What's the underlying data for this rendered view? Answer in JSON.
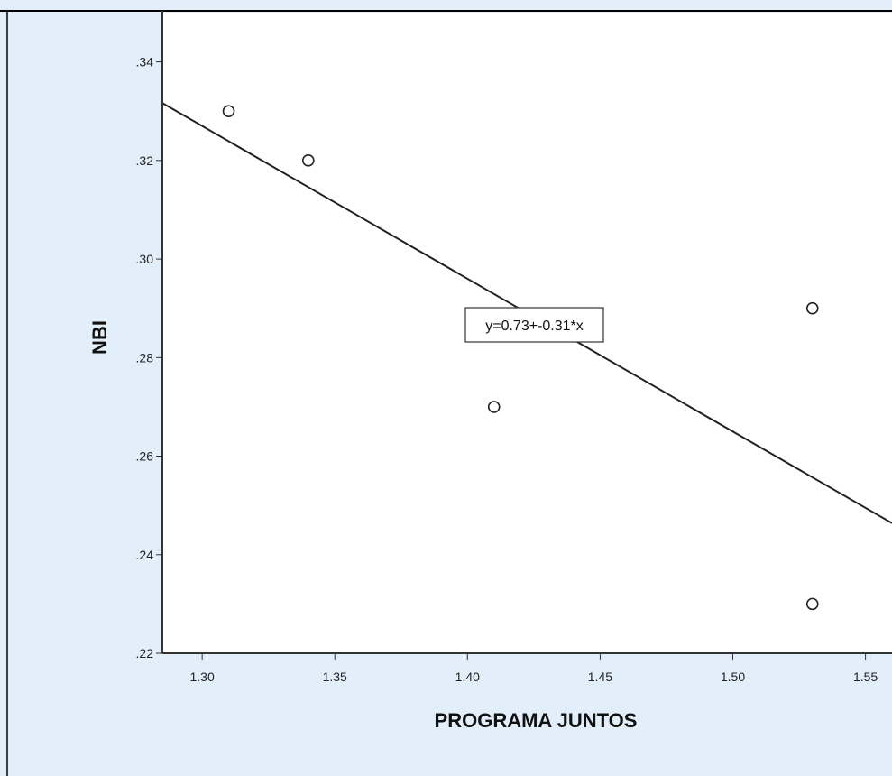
{
  "chart_data": {
    "type": "scatter",
    "xlabel": "PROGRAMA JUNTOS",
    "ylabel": "NBI",
    "xlim": [
      1.285,
      1.56
    ],
    "ylim": [
      0.22,
      0.35
    ],
    "x_ticks": [
      "1.30",
      "1.35",
      "1.40",
      "1.45",
      "1.50",
      "1.55"
    ],
    "y_ticks": [
      ".22",
      ".24",
      ".26",
      ".28",
      ".30",
      ".32",
      ".34"
    ],
    "points": [
      {
        "x": 1.31,
        "y": 0.33
      },
      {
        "x": 1.34,
        "y": 0.32
      },
      {
        "x": 1.41,
        "y": 0.27
      },
      {
        "x": 1.53,
        "y": 0.29
      },
      {
        "x": 1.53,
        "y": 0.23
      }
    ],
    "fit_line": {
      "intercept": 0.73,
      "slope": -0.31
    },
    "fit_label": "y=0.73+-0.31*x",
    "grid": false
  },
  "colors": {
    "outer_background": "#e3eefb",
    "plot_background": "#ffffff",
    "axis": "#333333",
    "line": "#222222",
    "marker": "#222222"
  }
}
